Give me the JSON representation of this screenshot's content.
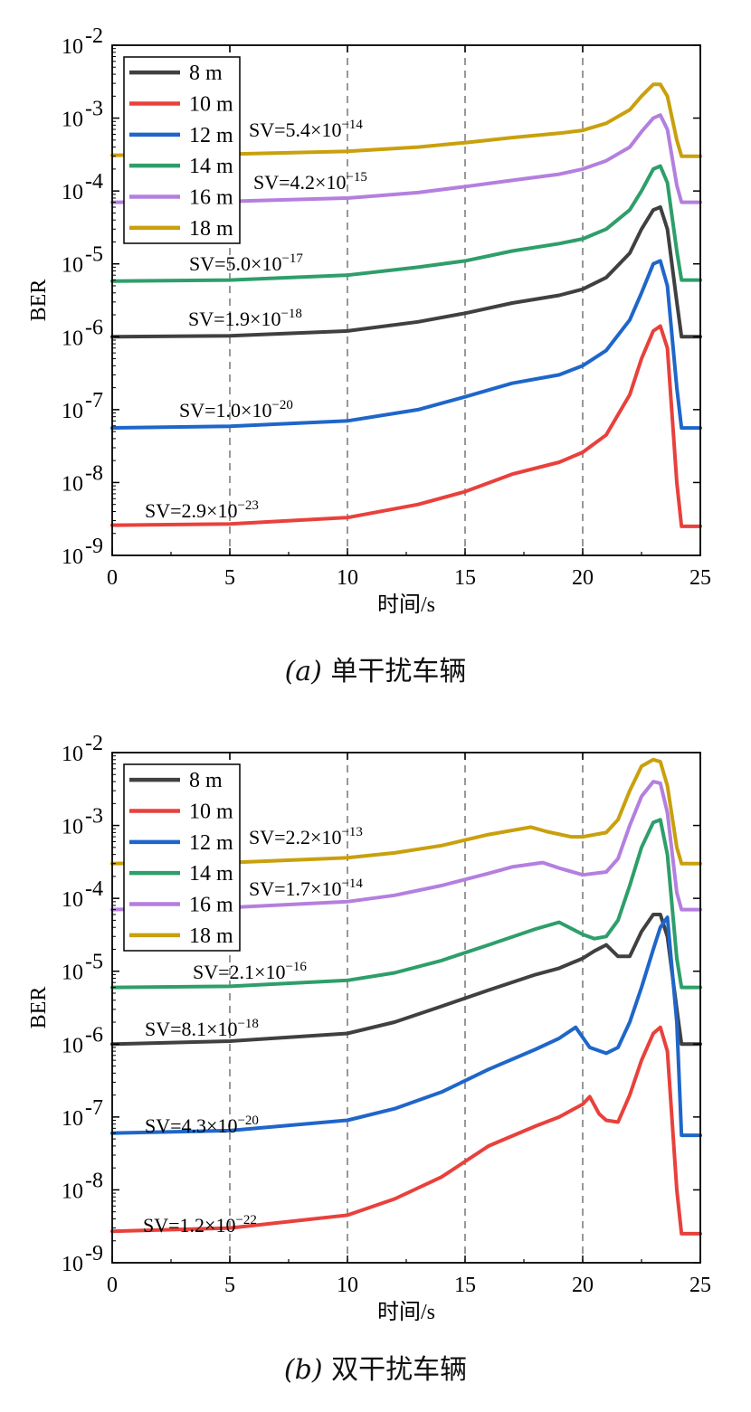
{
  "chart_data": [
    {
      "type": "line",
      "caption_label": "(a)",
      "caption_text": "单干扰车辆",
      "xlabel": "时间/s",
      "ylabel": "BER",
      "xlim": [
        0,
        25
      ],
      "ylim": [
        1e-09,
        0.01
      ],
      "yscale": "log",
      "x_ticks": [
        "0",
        "5",
        "10",
        "15",
        "20",
        "25"
      ],
      "y_tick_exponents": [
        "-2",
        "-3",
        "-4",
        "-5",
        "-6",
        "-7",
        "-8",
        "-9"
      ],
      "y_tick_base": "10",
      "vlines": [
        5,
        10,
        15,
        20
      ],
      "legend_position": "top-left",
      "series": [
        {
          "name": "8 m",
          "color": "#404040",
          "annotation": {
            "prefix": "SV=1.9×10",
            "exp": "−18"
          },
          "x": [
            0,
            5,
            10,
            13,
            15,
            17,
            19,
            20,
            21,
            22,
            22.5,
            23,
            23.3,
            23.6,
            24,
            24.2,
            25
          ],
          "y": [
            1e-06,
            1.03e-06,
            1.2e-06,
            1.6e-06,
            2.1e-06,
            2.9e-06,
            3.7e-06,
            4.5e-06,
            6.5e-06,
            1.4e-05,
            3e-05,
            5.5e-05,
            6e-05,
            3e-05,
            3e-06,
            1e-06,
            1e-06
          ]
        },
        {
          "name": "10 m",
          "color": "#e8413c",
          "annotation": {
            "prefix": "SV=2.9×10",
            "exp": "−23"
          },
          "x": [
            0,
            5,
            10,
            13,
            15,
            17,
            19,
            20,
            21,
            22,
            22.5,
            23,
            23.3,
            23.6,
            24,
            24.2,
            25
          ],
          "y": [
            2.6e-09,
            2.7e-09,
            3.3e-09,
            5e-09,
            7.5e-09,
            1.3e-08,
            1.9e-08,
            2.6e-08,
            4.5e-08,
            1.6e-07,
            5e-07,
            1.2e-06,
            1.4e-06,
            7e-07,
            1e-08,
            2.5e-09,
            2.5e-09
          ]
        },
        {
          "name": "12 m",
          "color": "#1f66c9",
          "annotation": {
            "prefix": "SV=1.0×10",
            "exp": "−20"
          },
          "x": [
            0,
            5,
            10,
            13,
            15,
            17,
            19,
            20,
            21,
            22,
            22.5,
            23,
            23.3,
            23.6,
            24,
            24.2,
            25
          ],
          "y": [
            5.6e-08,
            5.9e-08,
            7e-08,
            1e-07,
            1.5e-07,
            2.3e-07,
            3e-07,
            4e-07,
            6.5e-07,
            1.7e-06,
            4e-06,
            1e-05,
            1.1e-05,
            5e-06,
            2e-07,
            5.6e-08,
            5.6e-08
          ]
        },
        {
          "name": "14 m",
          "color": "#2e9e6a",
          "annotation": {
            "prefix": "SV=5.0×10",
            "exp": "−17"
          },
          "x": [
            0,
            5,
            10,
            13,
            15,
            17,
            19,
            20,
            21,
            22,
            22.5,
            23,
            23.3,
            23.6,
            24,
            24.2,
            25
          ],
          "y": [
            5.8e-06,
            6e-06,
            7e-06,
            9e-06,
            1.1e-05,
            1.5e-05,
            1.9e-05,
            2.2e-05,
            3e-05,
            5.5e-05,
            0.0001,
            0.0002,
            0.00022,
            0.00013,
            1.5e-05,
            6e-06,
            6e-06
          ]
        },
        {
          "name": "16 m",
          "color": "#b47fde",
          "annotation": {
            "prefix": "SV=4.2×10",
            "exp": "−15"
          },
          "x": [
            0,
            5,
            10,
            13,
            15,
            17,
            19,
            20,
            21,
            22,
            22.5,
            23,
            23.3,
            23.6,
            24,
            24.2,
            25
          ],
          "y": [
            7e-05,
            7.2e-05,
            8e-05,
            9.5e-05,
            0.000115,
            0.00014,
            0.00017,
            0.0002,
            0.00026,
            0.0004,
            0.00065,
            0.001,
            0.0011,
            0.0007,
            0.00012,
            7e-05,
            7e-05
          ]
        },
        {
          "name": "18 m",
          "color": "#c9a00d",
          "annotation": {
            "prefix": "SV=5.4×10",
            "exp": "−14"
          },
          "x": [
            0,
            5,
            10,
            13,
            15,
            17,
            19,
            20,
            21,
            22,
            22.5,
            23,
            23.3,
            23.6,
            24,
            24.2,
            25
          ],
          "y": [
            0.00031,
            0.00032,
            0.00035,
            0.0004,
            0.00046,
            0.00054,
            0.00062,
            0.00068,
            0.00085,
            0.0013,
            0.002,
            0.0029,
            0.0029,
            0.002,
            0.0005,
            0.0003,
            0.0003
          ]
        }
      ]
    },
    {
      "type": "line",
      "caption_label": "(b)",
      "caption_text": "双干扰车辆",
      "xlabel": "时间/s",
      "ylabel": "BER",
      "xlim": [
        0,
        25
      ],
      "ylim": [
        1e-09,
        0.01
      ],
      "yscale": "log",
      "x_ticks": [
        "0",
        "5",
        "10",
        "15",
        "20",
        "25"
      ],
      "y_tick_exponents": [
        "-2",
        "-3",
        "-4",
        "-5",
        "-6",
        "-7",
        "-8",
        "-9"
      ],
      "y_tick_base": "10",
      "vlines": [
        5,
        10,
        15,
        20
      ],
      "legend_position": "top-left",
      "series": [
        {
          "name": "8 m",
          "color": "#404040",
          "annotation": {
            "prefix": "SV=8.1×10",
            "exp": "−18"
          },
          "x": [
            0,
            5,
            10,
            12,
            14,
            16,
            18,
            19,
            20,
            20.5,
            21,
            21.5,
            22,
            22.5,
            23,
            23.3,
            23.6,
            24,
            24.2,
            25
          ],
          "y": [
            1e-06,
            1.1e-06,
            1.4e-06,
            2e-06,
            3.3e-06,
            5.5e-06,
            9e-06,
            1.1e-05,
            1.5e-05,
            1.9e-05,
            2.3e-05,
            1.6e-05,
            1.6e-05,
            3.5e-05,
            6e-05,
            6e-05,
            3e-05,
            3e-06,
            1e-06,
            1e-06
          ]
        },
        {
          "name": "10 m",
          "color": "#e8413c",
          "annotation": {
            "prefix": "SV=1.2×10",
            "exp": "−22"
          },
          "x": [
            0,
            5,
            10,
            12,
            14,
            16,
            18,
            19,
            20,
            20.3,
            20.7,
            21,
            21.5,
            22,
            22.5,
            23,
            23.3,
            23.6,
            24,
            24.2,
            25
          ],
          "y": [
            2.7e-09,
            3e-09,
            4.5e-09,
            7.5e-09,
            1.5e-08,
            4e-08,
            7.5e-08,
            1e-07,
            1.5e-07,
            1.9e-07,
            1.1e-07,
            9e-08,
            8.5e-08,
            2e-07,
            6e-07,
            1.4e-06,
            1.7e-06,
            8e-07,
            1e-08,
            2.5e-09,
            2.5e-09
          ]
        },
        {
          "name": "12 m",
          "color": "#1f66c9",
          "annotation": {
            "prefix": "SV=4.3×10",
            "exp": "−20"
          },
          "x": [
            0,
            5,
            10,
            12,
            14,
            16,
            18,
            19,
            19.7,
            20.3,
            21,
            21.5,
            22,
            22.5,
            23,
            23.3,
            23.6,
            24,
            24.2,
            25
          ],
          "y": [
            6e-08,
            6.5e-08,
            9e-08,
            1.3e-07,
            2.2e-07,
            4.5e-07,
            8.5e-07,
            1.2e-06,
            1.7e-06,
            9e-07,
            7.5e-07,
            9e-07,
            2e-06,
            6e-06,
            2e-05,
            4e-05,
            5.5e-05,
            2e-06,
            5.6e-08,
            5.6e-08
          ]
        },
        {
          "name": "14 m",
          "color": "#2e9e6a",
          "annotation": {
            "prefix": "SV=2.1×10",
            "exp": "−16"
          },
          "x": [
            0,
            5,
            10,
            12,
            14,
            16,
            18,
            19,
            20,
            20.5,
            21,
            21.5,
            22,
            22.5,
            23,
            23.3,
            23.6,
            24,
            24.2,
            25
          ],
          "y": [
            6e-06,
            6.2e-06,
            7.5e-06,
            9.5e-06,
            1.4e-05,
            2.3e-05,
            3.8e-05,
            4.7e-05,
            3.2e-05,
            2.8e-05,
            3e-05,
            5e-05,
            0.00015,
            0.0005,
            0.0011,
            0.0012,
            0.0004,
            1.5e-05,
            6e-06,
            6e-06
          ]
        },
        {
          "name": "16 m",
          "color": "#b47fde",
          "annotation": {
            "prefix": "SV=1.7×10",
            "exp": "−14"
          },
          "x": [
            0,
            5,
            10,
            12,
            14,
            16,
            17,
            18.3,
            19,
            20,
            21,
            21.5,
            22,
            22.5,
            23,
            23.3,
            23.6,
            24,
            24.2,
            25
          ],
          "y": [
            7e-05,
            7.5e-05,
            9e-05,
            0.00011,
            0.00015,
            0.00022,
            0.00027,
            0.00031,
            0.00026,
            0.00021,
            0.00023,
            0.00035,
            0.001,
            0.0025,
            0.004,
            0.0038,
            0.0015,
            0.00012,
            7e-05,
            7e-05
          ]
        },
        {
          "name": "18 m",
          "color": "#c9a00d",
          "annotation": {
            "prefix": "SV=2.2×10",
            "exp": "−13"
          },
          "x": [
            0,
            5,
            10,
            12,
            14,
            16,
            17.8,
            18.5,
            19.5,
            20,
            21,
            21.5,
            22,
            22.5,
            23,
            23.3,
            23.6,
            24,
            24.2,
            25
          ],
          "y": [
            0.0003,
            0.00031,
            0.00036,
            0.00042,
            0.00053,
            0.00075,
            0.00095,
            0.00082,
            0.0007,
            0.0007,
            0.0008,
            0.0012,
            0.003,
            0.0065,
            0.008,
            0.0075,
            0.0035,
            0.0005,
            0.0003,
            0.0003
          ]
        }
      ]
    }
  ]
}
